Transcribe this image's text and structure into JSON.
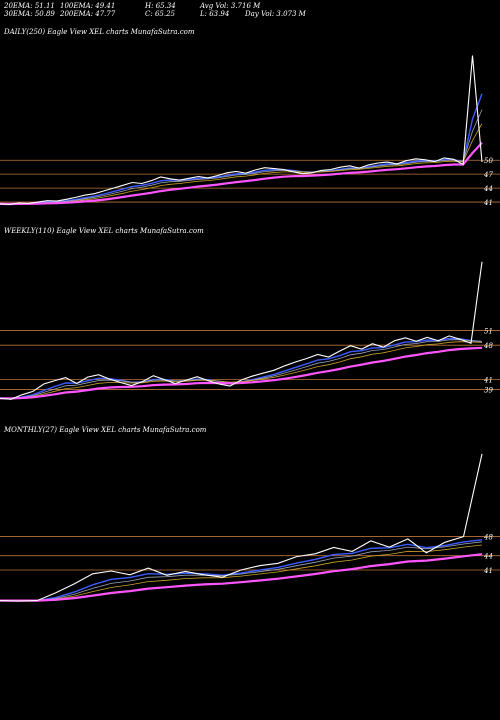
{
  "header": {
    "ema20": "20EMA: 51.11",
    "ema30": "30EMA: 50.89",
    "ema100": "100EMA: 49.41",
    "ema200": "200EMA: 47.77",
    "high": "H: 65.34",
    "close": "C: 65.25",
    "avg_vol": "Avg Vol: 3.716  M",
    "low": "L: 63.94",
    "day_vol": "Day Vol: 3.073 M"
  },
  "colors": {
    "background": "#000000",
    "price": "#ffffff",
    "level_line": "#b8733a",
    "ema_fast": "#3b5bff",
    "ema_mid": "#9aa3b5",
    "ema_gold": "#c9a227",
    "ema_slow": "#ff55ff"
  },
  "chart_data": [
    {
      "type": "line",
      "title": "DAILY(250) Eagle  View  XEL  charts MunafaSutra.com",
      "levels": [
        "50",
        "47",
        "44",
        "41"
      ],
      "series": [
        {
          "values": [
            40.6,
            40.5,
            40.8,
            40.7,
            41.0,
            41.3,
            41.2,
            41.6,
            42.0,
            42.5,
            42.8,
            43.4,
            44.0,
            44.6,
            45.2,
            45.0,
            45.6,
            46.4,
            46.0,
            45.7,
            46.1,
            46.5,
            46.2,
            46.7,
            47.3,
            47.6,
            47.2,
            47.9,
            48.4,
            48.2,
            48.0,
            47.5,
            47.1,
            47.3,
            47.8,
            48.0,
            48.5,
            48.8,
            48.3,
            49.0,
            49.4,
            49.6,
            49.2,
            49.9,
            50.3,
            50.1,
            49.7,
            50.5,
            50.2,
            49.1,
            72.5,
            49.6
          ]
        }
      ]
    },
    {
      "type": "line",
      "title": "WEEKLY(110) Eagle  View  XEL  charts MunafaSutra.com",
      "levels": [
        "51",
        "48",
        "41",
        "39"
      ],
      "series": [
        {
          "values": [
            37.2,
            37.0,
            37.9,
            38.6,
            40.1,
            40.8,
            41.4,
            40.2,
            41.5,
            42.0,
            41.1,
            40.4,
            39.8,
            40.6,
            41.8,
            41.0,
            40.2,
            40.9,
            41.6,
            40.8,
            40.1,
            39.7,
            40.9,
            41.7,
            42.3,
            42.9,
            43.8,
            44.6,
            45.3,
            46.1,
            45.6,
            46.8,
            47.9,
            47.2,
            48.3,
            47.6,
            48.9,
            49.5,
            48.8,
            49.6,
            48.9,
            49.9,
            49.2,
            48.4,
            65.0
          ]
        }
      ]
    },
    {
      "type": "line",
      "title": "MONTHLY(27) Eagle  View  XEL  charts MunafaSutra.com",
      "levels": [
        "48",
        "44",
        "41"
      ],
      "series": [
        {
          "values": [
            34.6,
            34.5,
            34.6,
            36.2,
            38.1,
            40.2,
            40.8,
            40.0,
            41.4,
            39.9,
            40.7,
            40.0,
            39.5,
            41.0,
            41.9,
            42.4,
            43.8,
            44.4,
            45.7,
            44.9,
            47.1,
            45.8,
            47.5,
            44.6,
            46.8,
            48.0,
            65.3
          ]
        }
      ]
    }
  ]
}
